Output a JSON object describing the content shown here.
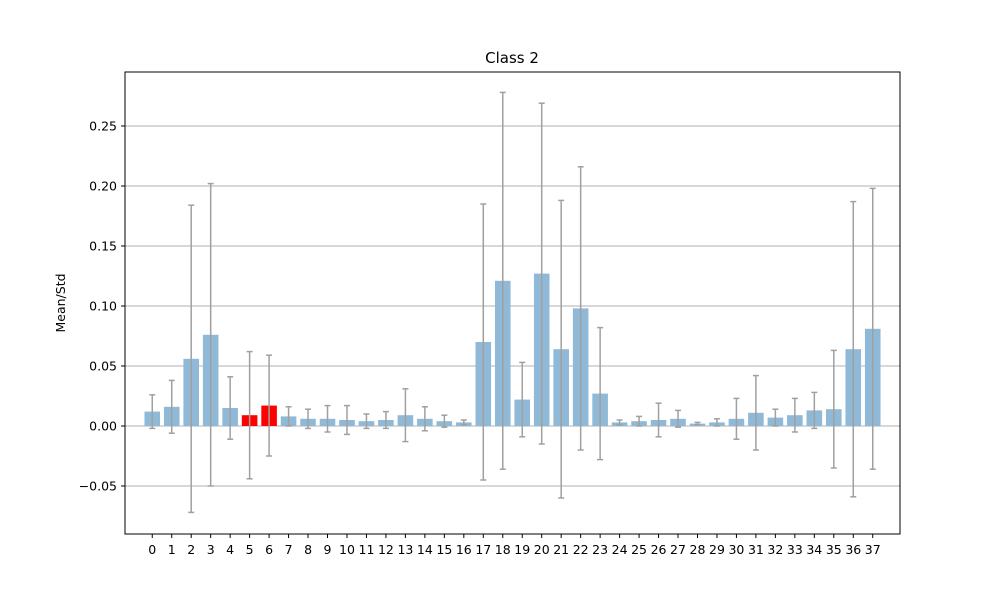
{
  "chart_data": {
    "type": "bar",
    "title": "Class 2",
    "xlabel": "",
    "ylabel": "Mean/Std",
    "categories": [
      "0",
      "1",
      "2",
      "3",
      "4",
      "5",
      "6",
      "7",
      "8",
      "9",
      "10",
      "11",
      "12",
      "13",
      "14",
      "15",
      "16",
      "17",
      "18",
      "19",
      "20",
      "21",
      "22",
      "23",
      "24",
      "25",
      "26",
      "27",
      "28",
      "29",
      "30",
      "31",
      "32",
      "33",
      "34",
      "35",
      "36",
      "37"
    ],
    "values": [
      0.012,
      0.016,
      0.056,
      0.076,
      0.015,
      0.009,
      0.017,
      0.008,
      0.006,
      0.006,
      0.005,
      0.004,
      0.005,
      0.009,
      0.006,
      0.004,
      0.003,
      0.07,
      0.121,
      0.022,
      0.127,
      0.064,
      0.098,
      0.027,
      0.003,
      0.004,
      0.005,
      0.006,
      0.002,
      0.003,
      0.006,
      0.011,
      0.007,
      0.009,
      0.013,
      0.014,
      0.064,
      0.081
    ],
    "errors": [
      0.014,
      0.022,
      0.128,
      0.126,
      0.026,
      0.053,
      0.042,
      0.008,
      0.008,
      0.011,
      0.012,
      0.006,
      0.007,
      0.022,
      0.01,
      0.005,
      0.002,
      0.115,
      0.157,
      0.031,
      0.142,
      0.124,
      0.118,
      0.055,
      0.002,
      0.004,
      0.014,
      0.007,
      0.001,
      0.003,
      0.017,
      0.031,
      0.007,
      0.014,
      0.015,
      0.049,
      0.123,
      0.117
    ],
    "highlighted": [
      "5",
      "6"
    ],
    "colors": {
      "bar": "#8fb9d6",
      "highlight": "#ff0000",
      "error": "#a0a0a0",
      "grid": "#b0b0b0"
    },
    "ylim": [
      -0.09,
      0.295
    ],
    "yticks": [
      -0.05,
      0.0,
      0.05,
      0.1,
      0.15,
      0.2,
      0.25
    ],
    "ytick_labels": [
      "−0.05",
      "0.00",
      "0.05",
      "0.10",
      "0.15",
      "0.20",
      "0.25"
    ],
    "grid": "horizontal"
  }
}
